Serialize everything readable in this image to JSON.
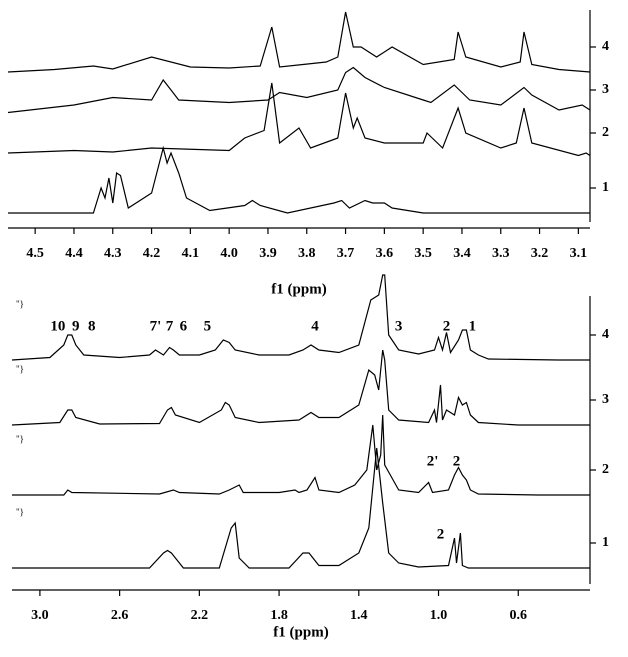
{
  "chart_data": [
    {
      "type": "line",
      "x_label": "f1 (ppm)",
      "color": "#000000",
      "xlim": [
        4.57,
        3.07
      ],
      "xticks": [
        4.5,
        4.4,
        4.3,
        4.2,
        4.1,
        {
          "value": 4,
          "label": "4.0"
        },
        3.9,
        3.8,
        3.7,
        3.6,
        3.5,
        3.4,
        3.3,
        3.2,
        3.1
      ],
      "series": [
        {
          "name": "4",
          "x": [
            4.57,
            4.45,
            4.35,
            4.3,
            4.2,
            4.1,
            4.0,
            3.92,
            3.89,
            3.87,
            3.81,
            3.75,
            3.72,
            3.7,
            3.68,
            3.66,
            3.62,
            3.58,
            3.5,
            3.42,
            3.41,
            3.39,
            3.3,
            3.25,
            3.24,
            3.22,
            3.15,
            3.07
          ],
          "values": [
            0,
            0.05,
            0.12,
            0.06,
            0.3,
            0.1,
            0.08,
            0.12,
            0.9,
            0.1,
            0.15,
            0.2,
            0.3,
            1.2,
            0.5,
            0.5,
            0.3,
            0.5,
            0.15,
            0.25,
            0.8,
            0.3,
            0.1,
            0.2,
            0.8,
            0.15,
            0.05,
            0
          ]
        },
        {
          "name": "3",
          "x": [
            4.57,
            4.4,
            4.3,
            4.2,
            4.17,
            4.15,
            4.13,
            4.0,
            3.9,
            3.87,
            3.8,
            3.72,
            3.7,
            3.68,
            3.65,
            3.6,
            3.5,
            3.48,
            3.42,
            3.38,
            3.3,
            3.24,
            3.22,
            3.15,
            3.09,
            3.07
          ],
          "values": [
            0.05,
            0.2,
            0.35,
            0.3,
            0.7,
            0.5,
            0.3,
            0.25,
            0.3,
            0.45,
            0.35,
            0.5,
            0.85,
            0.95,
            0.75,
            0.55,
            0.3,
            0.25,
            0.6,
            0.3,
            0.2,
            0.55,
            0.4,
            0.1,
            0.2,
            0.1
          ]
        },
        {
          "name": "2",
          "x": [
            4.57,
            4.4,
            4.3,
            4.2,
            4.0,
            3.96,
            3.91,
            3.89,
            3.87,
            3.82,
            3.79,
            3.72,
            3.7,
            3.68,
            3.67,
            3.65,
            3.6,
            3.5,
            3.49,
            3.45,
            3.41,
            3.39,
            3.3,
            3.26,
            3.24,
            3.22,
            3.1,
            3.08,
            3.07
          ],
          "values": [
            0.1,
            0.15,
            0.12,
            0.2,
            0.15,
            0.4,
            0.55,
            1.5,
            0.3,
            0.6,
            0.2,
            0.4,
            1.3,
            0.6,
            0.8,
            0.4,
            0.3,
            0.3,
            0.5,
            0.2,
            1.0,
            0.5,
            0.2,
            0.3,
            1.0,
            0.3,
            0.05,
            0.1,
            0.05
          ]
        },
        {
          "name": "1",
          "x": [
            4.57,
            4.35,
            4.33,
            4.32,
            4.31,
            4.3,
            4.29,
            4.28,
            4.26,
            4.2,
            4.17,
            4.16,
            4.15,
            4.13,
            4.11,
            4.05,
            3.96,
            3.94,
            3.92,
            3.85,
            3.73,
            3.71,
            3.69,
            3.65,
            3.63,
            3.6,
            3.58,
            3.5,
            3.07
          ],
          "values": [
            0,
            0,
            0.5,
            0.3,
            0.7,
            0.2,
            0.8,
            0.75,
            0.1,
            0.4,
            1.3,
            1.0,
            1.2,
            0.8,
            0.3,
            0.05,
            0.15,
            0.25,
            0.15,
            0,
            0.2,
            0.25,
            0.1,
            0.25,
            0.2,
            0.2,
            0.1,
            0,
            0
          ]
        }
      ]
    },
    {
      "type": "line",
      "x_label": "f1 (ppm)",
      "color": "#000000",
      "xlim": [
        3.14,
        0.24
      ],
      "xticks": [
        {
          "value": 3,
          "label": "3.0"
        },
        2.6,
        2.2,
        1.8,
        1.4,
        {
          "value": 1,
          "label": "1.0"
        },
        0.6
      ],
      "series": [
        {
          "name": "4",
          "mark_text": "\"}",
          "peak_labels": [
            {
              "text": "10",
              "x": 2.91
            },
            {
              "text": "9",
              "x": 2.82
            },
            {
              "text": "8",
              "x": 2.74
            },
            {
              "text": "7'",
              "x": 2.42
            },
            {
              "text": "7",
              "x": 2.35
            },
            {
              "text": "6",
              "x": 2.28
            },
            {
              "text": "5",
              "x": 2.16
            },
            {
              "text": "4",
              "x": 1.62
            },
            {
              "text": "3",
              "x": 1.2
            },
            {
              "text": "2",
              "x": 0.96
            },
            {
              "text": "1",
              "x": 0.83
            }
          ],
          "x": [
            3.14,
            2.95,
            2.88,
            2.86,
            2.84,
            2.82,
            2.78,
            2.6,
            2.45,
            2.42,
            2.38,
            2.35,
            2.33,
            2.3,
            2.2,
            2.12,
            2.08,
            2.05,
            2.02,
            1.9,
            1.75,
            1.68,
            1.64,
            1.6,
            1.5,
            1.4,
            1.34,
            1.3,
            1.28,
            1.27,
            1.25,
            1.2,
            1.1,
            1.02,
            1.0,
            0.98,
            0.96,
            0.94,
            0.9,
            0.88,
            0.86,
            0.84,
            0.8,
            0.75,
            0.4,
            0.24
          ],
          "values": [
            0,
            0.05,
            0.3,
            0.5,
            0.5,
            0.3,
            0.1,
            0.05,
            0.1,
            0.2,
            0.1,
            0.25,
            0.2,
            0.1,
            0.1,
            0.2,
            0.4,
            0.35,
            0.2,
            0.1,
            0.1,
            0.2,
            0.3,
            0.2,
            0.15,
            0.3,
            1.2,
            1.3,
            1.7,
            1.7,
            0.5,
            0.2,
            0.12,
            0.2,
            0.45,
            0.2,
            0.55,
            0.15,
            0.4,
            0.6,
            0.6,
            0.2,
            0.1,
            0.02,
            0,
            0
          ]
        },
        {
          "name": "3",
          "mark_text": "\"}",
          "peak_labels": [],
          "x": [
            3.14,
            2.9,
            2.86,
            2.84,
            2.82,
            2.7,
            2.4,
            2.36,
            2.34,
            2.32,
            2.2,
            2.09,
            2.07,
            2.05,
            2.02,
            1.9,
            1.7,
            1.64,
            1.6,
            1.5,
            1.4,
            1.35,
            1.32,
            1.3,
            1.28,
            1.27,
            1.25,
            1.2,
            1.05,
            1.02,
            1.01,
            0.99,
            0.98,
            0.96,
            0.92,
            0.9,
            0.88,
            0.86,
            0.84,
            0.8,
            0.6,
            0.24
          ],
          "values": [
            0,
            0.05,
            0.3,
            0.3,
            0.15,
            0.02,
            0.03,
            0.3,
            0.35,
            0.2,
            0.05,
            0.3,
            0.45,
            0.4,
            0.15,
            0.05,
            0.1,
            0.25,
            0.15,
            0.15,
            0.4,
            1.1,
            1.0,
            0.7,
            1.5,
            1.3,
            0.3,
            0.1,
            0.05,
            0.3,
            0.05,
            0.8,
            0.1,
            0.3,
            0.2,
            0.55,
            0.4,
            0.45,
            0.2,
            0.05,
            0,
            0
          ]
        },
        {
          "name": "2",
          "mark_text": "\"}",
          "peak_labels": [
            {
              "text": "2'",
              "x": 1.03
            },
            {
              "text": "2",
              "x": 0.91
            }
          ],
          "x": [
            3.14,
            2.88,
            2.86,
            2.84,
            2.4,
            2.33,
            2.3,
            2.1,
            2.05,
            2.0,
            1.98,
            1.8,
            1.72,
            1.7,
            1.66,
            1.62,
            1.6,
            1.5,
            1.42,
            1.36,
            1.33,
            1.31,
            1.29,
            1.28,
            1.27,
            1.2,
            1.1,
            1.05,
            1.03,
            0.95,
            0.92,
            0.9,
            0.88,
            0.86,
            0.84,
            0.8,
            0.5,
            0.24
          ],
          "values": [
            0,
            0,
            0.1,
            0.05,
            0.02,
            0.1,
            0.05,
            0.02,
            0.1,
            0.2,
            0.05,
            0.05,
            0.1,
            0.05,
            0.1,
            0.35,
            0.1,
            0.05,
            0.2,
            0.5,
            1.4,
            0.5,
            0.8,
            1.6,
            0.6,
            0.1,
            0.05,
            0.25,
            0.05,
            0.1,
            0.4,
            0.55,
            0.4,
            0.3,
            0.1,
            0.02,
            0,
            0
          ]
        },
        {
          "name": "1",
          "mark_text": "\"}",
          "peak_labels": [
            {
              "text": "2",
              "x": 0.99
            }
          ],
          "x": [
            3.14,
            2.45,
            2.38,
            2.36,
            2.34,
            2.32,
            2.28,
            2.1,
            2.04,
            2.02,
            2.0,
            1.95,
            1.75,
            1.68,
            1.65,
            1.6,
            1.5,
            1.4,
            1.35,
            1.31,
            1.28,
            1.25,
            1.2,
            1.1,
            0.95,
            0.92,
            0.91,
            0.89,
            0.88,
            0.85,
            0.24
          ],
          "values": [
            0,
            0,
            0.3,
            0.35,
            0.3,
            0.2,
            0,
            0,
            0.8,
            0.9,
            0.2,
            0,
            0,
            0.3,
            0.3,
            0.05,
            0.05,
            0.3,
            0.8,
            2.4,
            1.3,
            0.3,
            0.1,
            0.02,
            0.05,
            0.6,
            0.1,
            0.7,
            0.05,
            0,
            0
          ]
        }
      ]
    }
  ]
}
